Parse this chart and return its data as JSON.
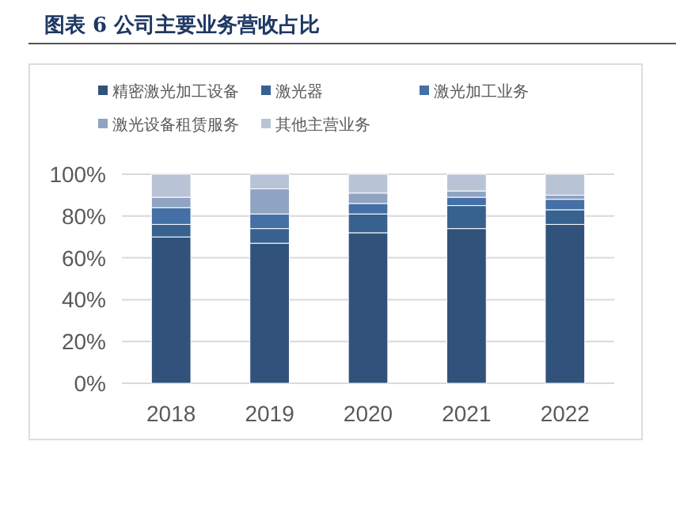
{
  "chart_data": {
    "type": "bar",
    "stacked": true,
    "title": "图表 6 公司主要业务营收占比",
    "categories": [
      "2018",
      "2019",
      "2020",
      "2021",
      "2022"
    ],
    "series": [
      {
        "name": "精密激光加工设备",
        "color": "#31527a",
        "values": [
          70,
          67,
          72,
          74,
          76
        ]
      },
      {
        "name": "激光器",
        "color": "#37618f",
        "values": [
          6,
          7,
          9,
          11,
          7
        ]
      },
      {
        "name": "激光加工业务",
        "color": "#4470a6",
        "values": [
          8,
          7,
          5,
          4,
          5
        ]
      },
      {
        "name": "激光设备租赁服务",
        "color": "#8fa3c2",
        "values": [
          5,
          12,
          5,
          3,
          2
        ]
      },
      {
        "name": "其他主营业务",
        "color": "#b8c4d6",
        "values": [
          11,
          7,
          9,
          8,
          10
        ]
      }
    ],
    "ylim": [
      0,
      100
    ],
    "yticks": [
      {
        "value": 0,
        "label": "0%"
      },
      {
        "value": 20,
        "label": "20%"
      },
      {
        "value": 40,
        "label": "40%"
      },
      {
        "value": 60,
        "label": "60%"
      },
      {
        "value": 80,
        "label": "80%"
      },
      {
        "value": 100,
        "label": "100%"
      }
    ],
    "grid": "y",
    "legend": "top"
  }
}
